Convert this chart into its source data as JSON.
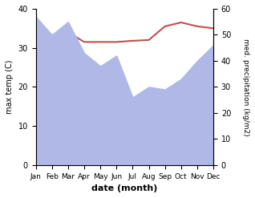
{
  "months": [
    "Jan",
    "Feb",
    "Mar",
    "Apr",
    "May",
    "Jun",
    "Jul",
    "Aug",
    "Sep",
    "Oct",
    "Nov",
    "Dec"
  ],
  "x": [
    0,
    1,
    2,
    3,
    4,
    5,
    6,
    7,
    8,
    9,
    10,
    11
  ],
  "precipitation": [
    57,
    50,
    55,
    43,
    38,
    42,
    26,
    30,
    29,
    33,
    40,
    46
  ],
  "max_temp": [
    32.5,
    33.0,
    34.0,
    31.5,
    31.5,
    31.5,
    31.8,
    32.0,
    35.5,
    36.5,
    35.5,
    35.0
  ],
  "precip_color": "#b0b8e8",
  "temp_color": "#c0504d",
  "left_ylabel": "max temp (C)",
  "right_ylabel": "med. precipitation (kg/m2)",
  "xlabel": "date (month)",
  "ylim_left": [
    0,
    40
  ],
  "ylim_right": [
    0,
    60
  ],
  "yticks_left": [
    0,
    10,
    20,
    30,
    40
  ],
  "yticks_right": [
    0,
    10,
    20,
    30,
    40,
    50,
    60
  ],
  "bg_color": "#ffffff"
}
